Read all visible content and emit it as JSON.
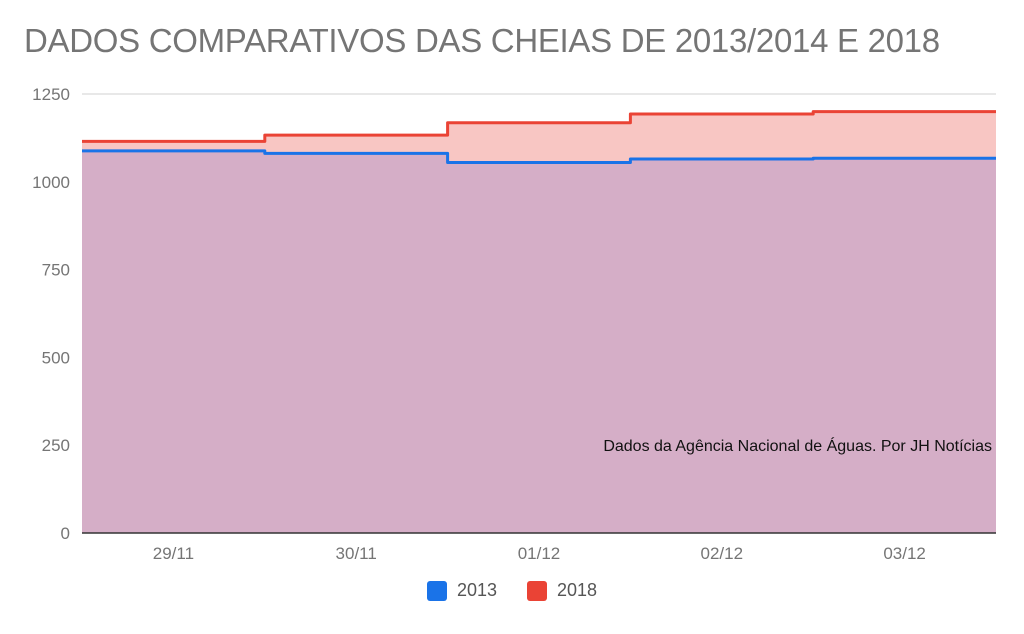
{
  "chart_data": {
    "type": "area",
    "title": "DADOS COMPARATIVOS DAS CHEIAS DE 2013/2014 E 2018",
    "categories": [
      "29/11",
      "30/11",
      "01/12",
      "02/12",
      "03/12"
    ],
    "ylim": [
      0,
      1250
    ],
    "yticks": [
      0,
      250,
      500,
      750,
      1000,
      1250
    ],
    "series": [
      {
        "name": "2018",
        "color": "#ea4335",
        "fill": "#f8c6c3",
        "values": [
          1115,
          1133,
          1168,
          1193,
          1200
        ]
      },
      {
        "name": "2013",
        "color": "#1a73e8",
        "fill": "#d5aec7",
        "values": [
          1088,
          1081,
          1055,
          1065,
          1067
        ]
      }
    ],
    "annotation": "Dados da Agência Nacional de Águas. Por JH Notícias",
    "legend_position": "bottom",
    "grid": true
  }
}
